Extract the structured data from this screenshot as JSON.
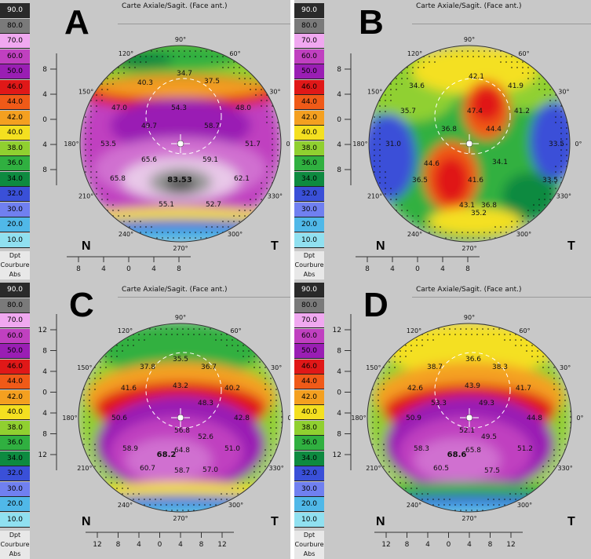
{
  "color_scale": [
    {
      "label": "90.0",
      "color": "#2a2a2a",
      "text": "#ffffff"
    },
    {
      "label": "80.0",
      "color": "#7a7a7a",
      "text": "#000000"
    },
    {
      "label": "70.0",
      "color": "#f0a8f0",
      "text": "#000000"
    },
    {
      "label": "60.0",
      "color": "#c040c0",
      "text": "#000000"
    },
    {
      "label": "50.0",
      "color": "#9a1eb4",
      "text": "#000000"
    },
    {
      "label": "46.0",
      "color": "#e01818",
      "text": "#000000"
    },
    {
      "label": "44.0",
      "color": "#f05a18",
      "text": "#000000"
    },
    {
      "label": "42.0",
      "color": "#f4a020",
      "text": "#000000"
    },
    {
      "label": "40.0",
      "color": "#f4e020",
      "text": "#000000"
    },
    {
      "label": "38.0",
      "color": "#90d030",
      "text": "#000000"
    },
    {
      "label": "36.0",
      "color": "#30b040",
      "text": "#000000"
    },
    {
      "label": "34.0",
      "color": "#0e8a40",
      "text": "#000000"
    },
    {
      "label": "32.0",
      "color": "#3a50d8",
      "text": "#000000"
    },
    {
      "label": "30.0",
      "color": "#7080f0",
      "text": "#000000"
    },
    {
      "label": "20.0",
      "color": "#50b8e8",
      "text": "#000000"
    },
    {
      "label": "10.0",
      "color": "#90e0f0",
      "text": "#000000"
    }
  ],
  "scale_units": [
    "Dpt",
    "Courbure",
    "Abs"
  ],
  "map_title": "Carte Axiale/Sagit. (Face ant.)",
  "side_left": "N",
  "side_right": "T",
  "angles": [
    "90°",
    "60°",
    "30°",
    "0°",
    "330°",
    "300°",
    "270°",
    "240°",
    "210°",
    "180°",
    "150°",
    "120°"
  ],
  "panels": [
    {
      "letter": "A",
      "yticks": [
        "8",
        "4",
        "0",
        "4",
        "8"
      ],
      "xticks": [
        "8",
        "4",
        "0",
        "4",
        "8"
      ],
      "values": [
        "34.7",
        "37.5",
        "40.3",
        "47.0",
        "54.3",
        "48.0",
        "49.7",
        "58.7",
        "53.5",
        "51.7",
        "65.6",
        "59.1",
        "65.8",
        "62.1",
        "83.53",
        "55.1",
        "52.7"
      ]
    },
    {
      "letter": "B",
      "yticks": [
        "8",
        "4",
        "0",
        "4",
        "8"
      ],
      "xticks": [
        "8",
        "4",
        "0",
        "4",
        "8"
      ],
      "values": [
        "34.6",
        "42.1",
        "41.9",
        "35.7",
        "47.4",
        "41.2",
        "36.8",
        "44.4",
        "31.0",
        "33.5",
        "34.1",
        "44.6",
        "41.6",
        "33.5",
        "36.5",
        "43.1",
        "36.8",
        "35.2"
      ]
    },
    {
      "letter": "C",
      "yticks": [
        "12",
        "8",
        "4",
        "0",
        "4",
        "8",
        "12"
      ],
      "xticks": [
        "12",
        "8",
        "4",
        "0",
        "4",
        "8",
        "12"
      ],
      "values": [
        "35.5",
        "37.8",
        "36.7",
        "41.6",
        "43.2",
        "40.2",
        "48.3",
        "50.6",
        "42.8",
        "56.8",
        "52.6",
        "58.9",
        "64.8",
        "51.0",
        "68.2",
        "60.7",
        "58.7",
        "57.0"
      ]
    },
    {
      "letter": "D",
      "yticks": [
        "12",
        "8",
        "4",
        "0",
        "4",
        "8",
        "12"
      ],
      "xticks": [
        "12",
        "8",
        "4",
        "0",
        "4",
        "8",
        "12"
      ],
      "values": [
        "36.6",
        "38.7",
        "38.3",
        "42.6",
        "43.9",
        "41.7",
        "53.3",
        "49.3",
        "50.9",
        "44.8",
        "52.1",
        "49.5",
        "58.3",
        "65.8",
        "51.2",
        "68.6",
        "60.5",
        "57.5"
      ]
    }
  ]
}
